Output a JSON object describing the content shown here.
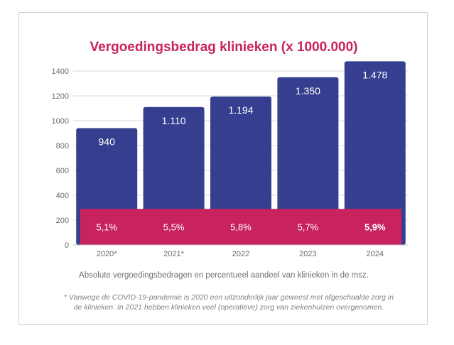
{
  "chart_data": {
    "type": "bar",
    "title": "Vergoedingsbedrag klinieken (x 1000.000)",
    "categories": [
      "2020*",
      "2021*",
      "2022",
      "2023",
      "2024"
    ],
    "values": [
      940,
      1110,
      1194,
      1350,
      1478
    ],
    "value_labels": [
      "940",
      "1.110",
      "1.194",
      "1.350",
      "1.478"
    ],
    "share_labels": [
      "5,1%",
      "5,5%",
      "5,8%",
      "5,7%",
      "5,9%"
    ],
    "share_band_value": 290,
    "yticks": [
      0,
      200,
      400,
      600,
      800,
      1000,
      1200,
      1400
    ],
    "ylim": [
      0,
      1400
    ],
    "xlabel": "",
    "ylabel": "",
    "caption": "Absolute vergoedingsbedragen en percentueel aandeel van klinieken in de msz.",
    "footnote": "* Vanwege de COVID-19-pandemie is 2020 een uitzonderlijk jaar geweest met afgeschaalde zorg in de klinieken. In 2021 hebben klinieken veel (operatieve) zorg van ziekenhuizen overgenomen.",
    "colors": {
      "bar": "#363f8f",
      "band": "#c8235e",
      "title": "#c8235e",
      "grid": "#d9d9d9",
      "axis_text": "#6b6b6b"
    }
  }
}
